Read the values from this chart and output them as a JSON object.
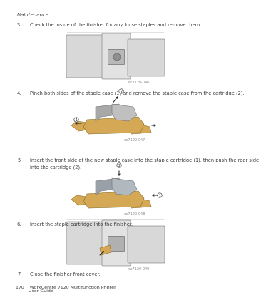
{
  "bg_color": "#ffffff",
  "header_text": "Maintenance",
  "footer_line1": "170    WorkCentre 7120 Multifunction Printer",
  "footer_line2": "         User Guide",
  "steps": [
    {
      "number": "3.",
      "text": "Check the inside of the finisher for any loose staples and remove them.",
      "image_label": "wc7120-046"
    },
    {
      "number": "4.",
      "text": "Pinch both sides of the staple case (1) and remove the staple case from the cartridge (2).",
      "image_label": "wc7120-047"
    },
    {
      "number": "5.",
      "text": "Insert the front side of the new staple case into the staple cartridge (1), then push the rear side into the cartridge (2).",
      "image_label": "wc7120-048"
    },
    {
      "number": "6.",
      "text": "Insert the staple cartridge into the finisher.",
      "image_label": "wc7120-049"
    },
    {
      "number": "7.",
      "text": "Close the finisher front cover.",
      "image_label": null
    }
  ],
  "text_color": "#3a3a3a",
  "header_color": "#3a3a3a",
  "footer_color": "#3a3a3a",
  "label_color": "#888888",
  "font_size_header": 5.0,
  "font_size_body": 4.8,
  "font_size_label": 3.5,
  "font_size_footer": 4.5,
  "line_color": "#bbbbbb",
  "tan_color": "#d4a855",
  "gray_color": "#a8a8a8",
  "dark_gray": "#707070",
  "light_gray": "#d8d8d8",
  "arrow_color": "#1a1a1a"
}
